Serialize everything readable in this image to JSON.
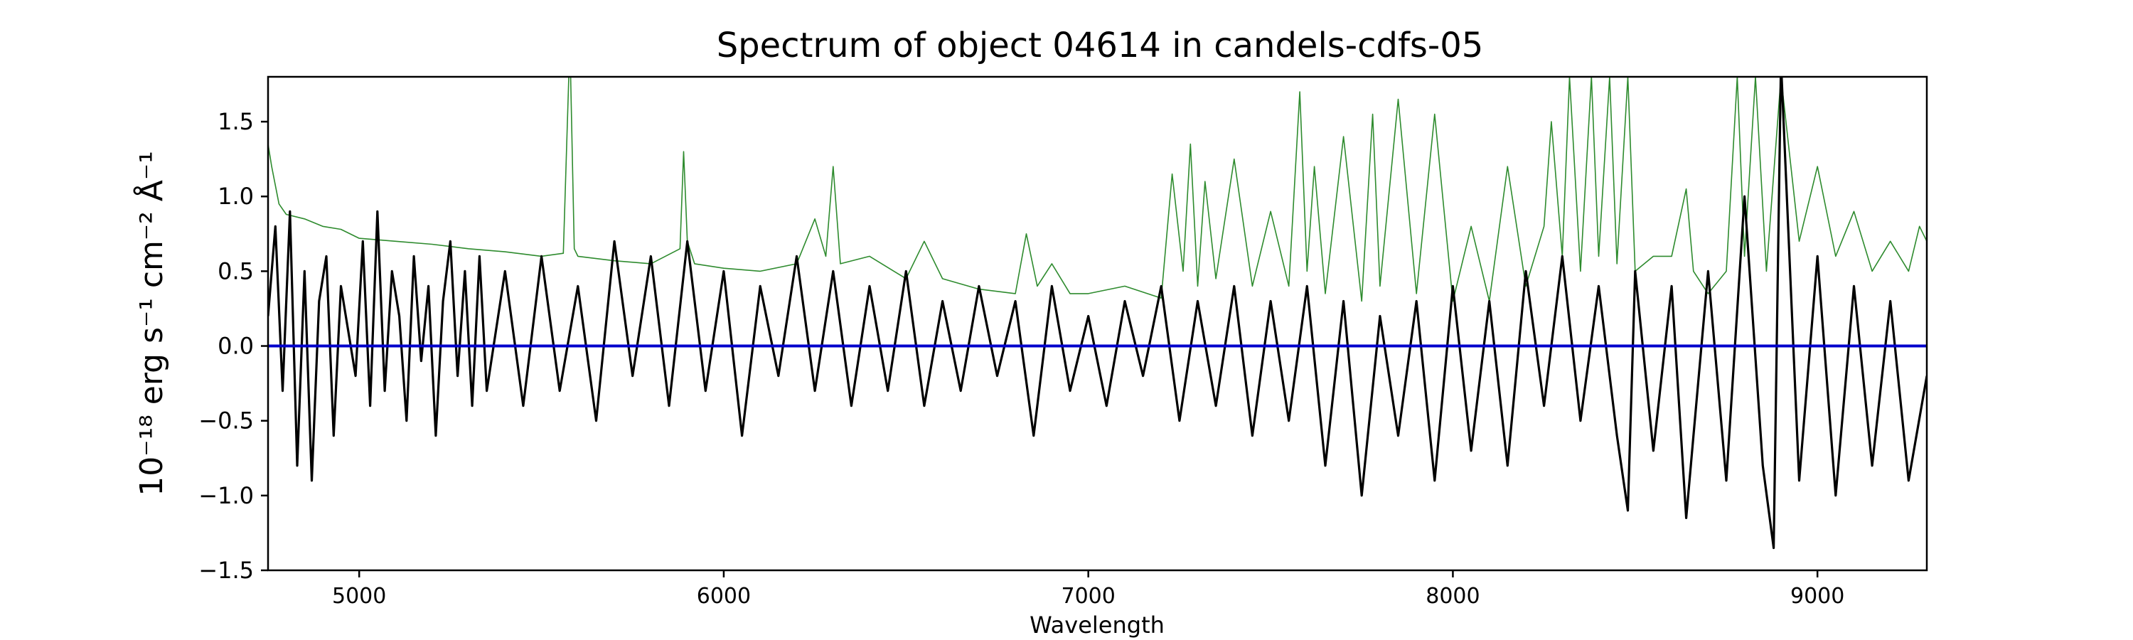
{
  "chart_data": {
    "type": "line",
    "title": "Spectrum of object 04614 in candels-cdfs-05",
    "xlabel": "Wavelength",
    "ylabel": "10⁻¹⁸ erg s⁻¹ cm⁻² Å⁻¹",
    "xlim": [
      4750,
      9300
    ],
    "ylim": [
      -1.5,
      1.8
    ],
    "xticks": [
      5000,
      6000,
      7000,
      8000,
      9000
    ],
    "yticks": [
      -1.5,
      -1.0,
      -0.5,
      0.0,
      0.5,
      1.0,
      1.5
    ],
    "ytick_labels": [
      "−1.5",
      "−1.0",
      "−0.5",
      "0.0",
      "0.5",
      "1.0",
      "1.5"
    ],
    "grid": false,
    "series": [
      {
        "role": "flux",
        "color": "#000000",
        "x": [
          4750,
          4770,
          4790,
          4810,
          4830,
          4850,
          4870,
          4890,
          4910,
          4930,
          4950,
          4970,
          4990,
          5010,
          5030,
          5050,
          5070,
          5090,
          5110,
          5130,
          5150,
          5170,
          5190,
          5210,
          5230,
          5250,
          5270,
          5290,
          5310,
          5330,
          5350,
          5400,
          5450,
          5500,
          5550,
          5600,
          5650,
          5700,
          5750,
          5800,
          5850,
          5900,
          5950,
          6000,
          6050,
          6100,
          6150,
          6200,
          6250,
          6300,
          6350,
          6400,
          6450,
          6500,
          6550,
          6600,
          6650,
          6700,
          6750,
          6800,
          6850,
          6900,
          6950,
          7000,
          7050,
          7100,
          7150,
          7200,
          7250,
          7300,
          7350,
          7400,
          7450,
          7500,
          7550,
          7600,
          7650,
          7700,
          7750,
          7800,
          7850,
          7900,
          7950,
          8000,
          8050,
          8100,
          8150,
          8200,
          8250,
          8300,
          8350,
          8400,
          8450,
          8480,
          8500,
          8550,
          8600,
          8640,
          8660,
          8700,
          8750,
          8800,
          8850,
          8880,
          8900,
          8950,
          9000,
          9050,
          9100,
          9150,
          9200,
          9250,
          9300
        ],
        "y": [
          0.2,
          0.8,
          -0.3,
          0.9,
          -0.8,
          0.5,
          -0.9,
          0.3,
          0.6,
          -0.6,
          0.4,
          0.1,
          -0.2,
          0.7,
          -0.4,
          0.9,
          -0.3,
          0.5,
          0.2,
          -0.5,
          0.6,
          -0.1,
          0.4,
          -0.6,
          0.3,
          0.7,
          -0.2,
          0.5,
          -0.4,
          0.6,
          -0.3,
          0.5,
          -0.4,
          0.6,
          -0.3,
          0.4,
          -0.5,
          0.7,
          -0.2,
          0.6,
          -0.4,
          0.7,
          -0.3,
          0.5,
          -0.6,
          0.4,
          -0.2,
          0.6,
          -0.3,
          0.5,
          -0.4,
          0.4,
          -0.3,
          0.5,
          -0.4,
          0.3,
          -0.3,
          0.4,
          -0.2,
          0.3,
          -0.6,
          0.4,
          -0.3,
          0.2,
          -0.4,
          0.3,
          -0.2,
          0.4,
          -0.5,
          0.3,
          -0.4,
          0.4,
          -0.6,
          0.3,
          -0.5,
          0.4,
          -0.8,
          0.3,
          -1.0,
          0.2,
          -0.6,
          0.3,
          -0.9,
          0.4,
          -0.7,
          0.3,
          -0.8,
          0.5,
          -0.4,
          0.6,
          -0.5,
          0.4,
          -0.6,
          -1.1,
          0.5,
          -0.7,
          0.4,
          -1.15,
          -0.6,
          0.5,
          -0.9,
          1.0,
          -0.8,
          -1.35,
          1.9,
          -0.9,
          0.6,
          -1.0,
          0.4,
          -0.8,
          0.3,
          -0.9,
          -0.2
        ]
      },
      {
        "role": "error",
        "color": "#2e8b2e",
        "x": [
          4750,
          4760,
          4780,
          4800,
          4850,
          4900,
          4950,
          5000,
          5100,
          5200,
          5300,
          5400,
          5500,
          5560,
          5575,
          5580,
          5590,
          5600,
          5700,
          5800,
          5880,
          5890,
          5900,
          5920,
          6000,
          6100,
          6200,
          6250,
          6280,
          6300,
          6320,
          6400,
          6500,
          6550,
          6600,
          6700,
          6800,
          6830,
          6860,
          6900,
          6950,
          7000,
          7100,
          7200,
          7230,
          7260,
          7280,
          7300,
          7320,
          7350,
          7400,
          7450,
          7500,
          7550,
          7580,
          7600,
          7620,
          7650,
          7700,
          7750,
          7780,
          7800,
          7850,
          7900,
          7950,
          8000,
          8050,
          8100,
          8150,
          8200,
          8250,
          8270,
          8300,
          8320,
          8350,
          8380,
          8400,
          8430,
          8450,
          8480,
          8500,
          8550,
          8600,
          8640,
          8660,
          8700,
          8750,
          8780,
          8800,
          8830,
          8860,
          8900,
          8950,
          9000,
          9050,
          9100,
          9150,
          9200,
          9250,
          9280,
          9300
        ],
        "y": [
          1.35,
          1.2,
          0.95,
          0.88,
          0.85,
          0.8,
          0.78,
          0.72,
          0.7,
          0.68,
          0.65,
          0.63,
          0.6,
          0.62,
          1.8,
          1.8,
          0.65,
          0.6,
          0.57,
          0.55,
          0.65,
          1.3,
          0.7,
          0.55,
          0.52,
          0.5,
          0.55,
          0.85,
          0.6,
          1.2,
          0.55,
          0.6,
          0.45,
          0.7,
          0.45,
          0.38,
          0.35,
          0.75,
          0.4,
          0.55,
          0.35,
          0.35,
          0.4,
          0.32,
          1.15,
          0.5,
          1.35,
          0.4,
          1.1,
          0.45,
          1.25,
          0.4,
          0.9,
          0.4,
          1.7,
          0.5,
          1.2,
          0.35,
          1.4,
          0.3,
          1.55,
          0.4,
          1.65,
          0.35,
          1.55,
          0.3,
          0.8,
          0.3,
          1.2,
          0.4,
          0.8,
          1.5,
          0.6,
          1.8,
          0.5,
          1.8,
          0.6,
          1.8,
          0.55,
          1.8,
          0.5,
          0.6,
          0.6,
          1.05,
          0.5,
          0.35,
          0.5,
          1.8,
          0.6,
          1.8,
          0.5,
          1.8,
          0.7,
          1.2,
          0.6,
          0.9,
          0.5,
          0.7,
          0.5,
          0.8,
          0.7
        ]
      },
      {
        "role": "zero",
        "color": "#0000cc",
        "x": [
          4750,
          9300
        ],
        "y": [
          0.0,
          0.0
        ]
      }
    ]
  }
}
